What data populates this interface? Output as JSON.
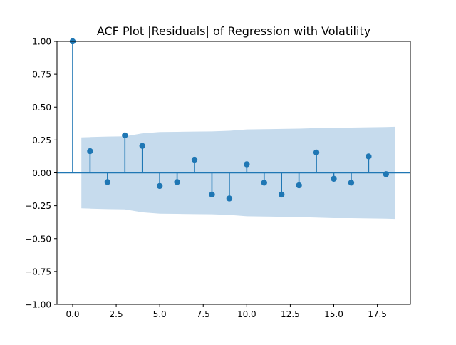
{
  "chart_data": {
    "type": "stem",
    "title": "ACF Plot |Residuals| of Regression with Volatility",
    "xlabel": "",
    "ylabel": "",
    "xlim": [
      -0.9,
      19.4
    ],
    "ylim": [
      -1.0,
      1.0
    ],
    "x_ticks": [
      0.0,
      2.5,
      5.0,
      7.5,
      10.0,
      12.5,
      15.0,
      17.5
    ],
    "x_tick_labels": [
      "0.0",
      "2.5",
      "5.0",
      "7.5",
      "10.0",
      "12.5",
      "15.0",
      "17.5"
    ],
    "y_ticks": [
      -1.0,
      -0.75,
      -0.5,
      -0.25,
      0.0,
      0.25,
      0.5,
      0.75,
      1.0
    ],
    "y_tick_labels": [
      "−1.00",
      "−0.75",
      "−0.50",
      "−0.25",
      "0.00",
      "0.25",
      "0.50",
      "0.75",
      "1.00"
    ],
    "grid": false,
    "colors": {
      "stem": "#1f77b4",
      "confidence_band": "#c6dbed",
      "axis": "#000000"
    },
    "series": [
      {
        "name": "ACF",
        "lags": [
          0,
          1,
          2,
          3,
          4,
          5,
          6,
          7,
          8,
          9,
          10,
          11,
          12,
          13,
          14,
          15,
          16,
          17,
          18
        ],
        "values": [
          1.0,
          0.165,
          -0.07,
          0.285,
          0.205,
          -0.1,
          -0.07,
          0.1,
          -0.165,
          -0.195,
          0.065,
          -0.075,
          -0.165,
          -0.095,
          0.155,
          -0.045,
          -0.075,
          0.125,
          -0.01
        ]
      }
    ],
    "confidence_interval": {
      "name": "95% confidence band",
      "x": [
        0.5,
        1,
        2,
        3,
        4,
        5,
        6,
        7,
        8,
        9,
        10,
        11,
        12,
        13,
        14,
        15,
        16,
        17,
        18,
        18.5
      ],
      "upper": [
        0.27,
        0.272,
        0.276,
        0.278,
        0.3,
        0.31,
        0.312,
        0.314,
        0.315,
        0.32,
        0.33,
        0.332,
        0.334,
        0.336,
        0.34,
        0.344,
        0.344,
        0.346,
        0.348,
        0.35
      ],
      "lower": [
        -0.27,
        -0.272,
        -0.276,
        -0.278,
        -0.3,
        -0.31,
        -0.312,
        -0.314,
        -0.315,
        -0.32,
        -0.33,
        -0.332,
        -0.334,
        -0.336,
        -0.34,
        -0.344,
        -0.344,
        -0.346,
        -0.348,
        -0.35
      ]
    }
  }
}
